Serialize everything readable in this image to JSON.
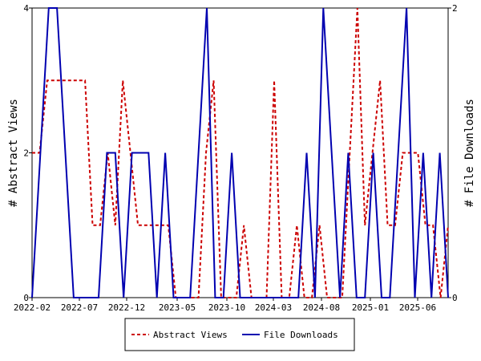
{
  "chart_data": {
    "type": "line",
    "x_tick_labels": [
      "2022-02",
      "2022-07",
      "2022-12",
      "2023-05",
      "2023-10",
      "2024-03",
      "2024-08",
      "2025-01",
      "2025-06"
    ],
    "left_axis": {
      "label": "# Abstract Views",
      "ylim": [
        0,
        4
      ],
      "ticks": [
        "0",
        "2",
        "4"
      ]
    },
    "right_axis": {
      "label": "# File Downloads",
      "ylim": [
        0,
        2
      ],
      "ticks": [
        "0",
        "1",
        "2"
      ]
    },
    "grid": false,
    "legend_position": "bottom",
    "series": [
      {
        "name": "Abstract Views",
        "axis": "left",
        "color": "#cc0000",
        "style": "dashed",
        "values": [
          2,
          2,
          3,
          3,
          3,
          3,
          3,
          3,
          1,
          1,
          2,
          1,
          3,
          2,
          1,
          1,
          1,
          1,
          1,
          0,
          0,
          0,
          0,
          2,
          3,
          0,
          0,
          0,
          1,
          0,
          0,
          0,
          3,
          0,
          0,
          1,
          0,
          0,
          1,
          0,
          0,
          0,
          2,
          4,
          1,
          2,
          3,
          1,
          1,
          2,
          2,
          2,
          1,
          1,
          0,
          1
        ]
      },
      {
        "name": "File Downloads",
        "axis": "right",
        "color": "#0000b0",
        "style": "solid",
        "values": [
          0,
          1,
          2,
          2,
          1,
          0,
          0,
          0,
          0,
          1,
          1,
          0,
          1,
          1,
          1,
          0,
          1,
          0,
          0,
          0,
          1,
          2,
          0,
          0,
          1,
          0,
          0,
          0,
          0,
          0,
          0,
          0,
          0,
          1,
          0,
          2,
          1,
          0,
          1,
          0,
          0,
          1,
          0,
          0,
          1,
          2,
          0,
          1,
          0,
          1,
          0
        ]
      }
    ],
    "legend": [
      {
        "label": "Abstract Views",
        "color": "#cc0000",
        "style": "dashed"
      },
      {
        "label": "File Downloads",
        "color": "#0000b0",
        "style": "solid"
      }
    ]
  }
}
